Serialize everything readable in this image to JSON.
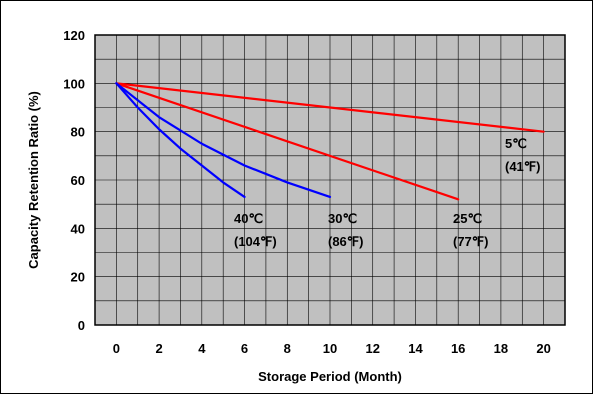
{
  "chart_data": {
    "type": "line",
    "xlabel": "Storage Period (Month)",
    "ylabel": "Capacity Retention Ratio (%)",
    "xlim": [
      -1,
      21
    ],
    "ylim": [
      0,
      120
    ],
    "x_ticks": [
      0,
      2,
      4,
      6,
      8,
      10,
      12,
      14,
      16,
      18,
      20
    ],
    "y_ticks": [
      0,
      20,
      40,
      60,
      80,
      100,
      120
    ],
    "x_tick_labels": [
      "0",
      "2",
      "4",
      "6",
      "8",
      "10",
      "12",
      "14",
      "16",
      "18",
      "20"
    ],
    "y_tick_labels": [
      "0",
      "20",
      "40",
      "60",
      "80",
      "100",
      "120"
    ],
    "grid": true,
    "plot_background": "#c0c0c0",
    "series": [
      {
        "name": "5℃ (41℉)",
        "label_lines": [
          "5℃",
          "(41℉)"
        ],
        "color": "#ff0000",
        "x": [
          0,
          20
        ],
        "y": [
          100,
          80
        ]
      },
      {
        "name": "25℃ (77℉)",
        "label_lines": [
          "25℃",
          "(77℉)"
        ],
        "color": "#ff0000",
        "x": [
          0,
          16
        ],
        "y": [
          100,
          52
        ]
      },
      {
        "name": "30℃ (86℉)",
        "label_lines": [
          "30℃",
          "(86℉)"
        ],
        "color": "#0000ff",
        "x": [
          0,
          2,
          4,
          6,
          8,
          10
        ],
        "y": [
          100,
          86,
          75,
          66,
          59,
          53
        ]
      },
      {
        "name": "40℃ (104℉)",
        "label_lines": [
          "40℃",
          "(104℉)"
        ],
        "color": "#0000ff",
        "x": [
          0,
          1,
          2,
          3,
          4,
          5,
          6
        ],
        "y": [
          100,
          90,
          81,
          73,
          66,
          59,
          53
        ]
      }
    ]
  }
}
